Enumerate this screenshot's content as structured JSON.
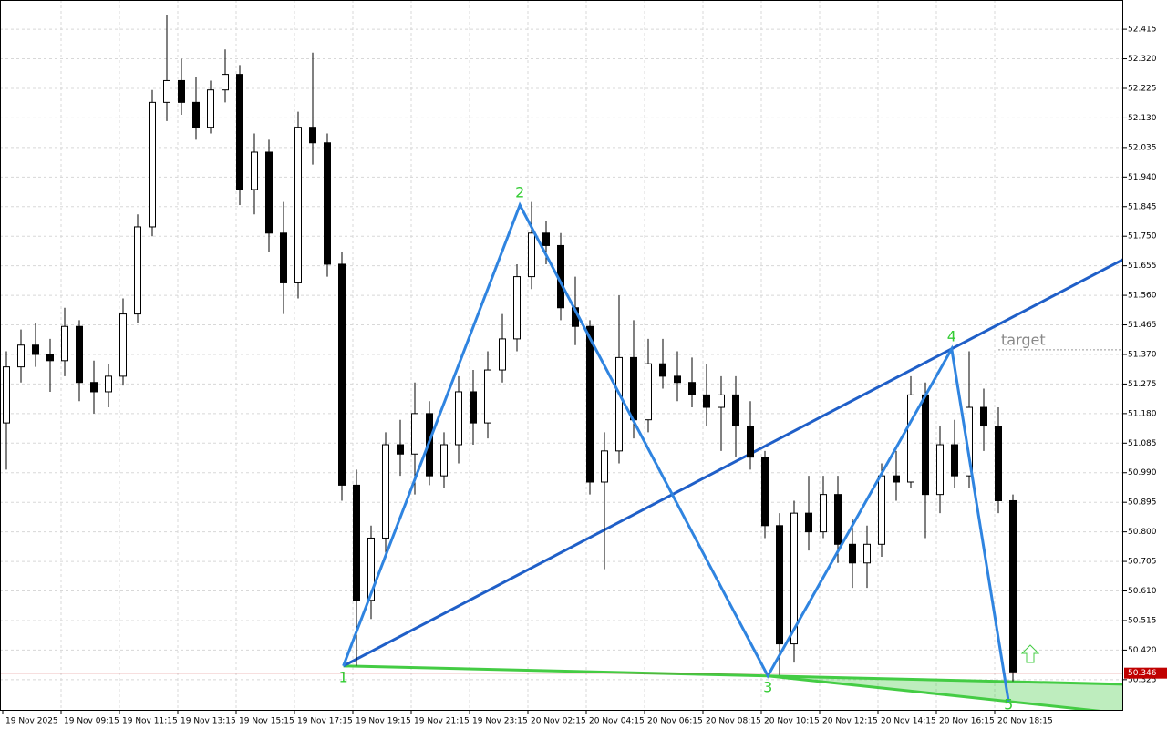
{
  "chart_data": {
    "type": "candlestick",
    "ylim": [
      50.225,
      52.509
    ],
    "yticks": [
      52.415,
      {
        "value": 52.32,
        "label": "52.320"
      },
      52.225,
      {
        "value": 52.13,
        "label": "52.130"
      },
      52.035,
      {
        "value": 51.94,
        "label": "51.940"
      },
      51.845,
      {
        "value": 51.75,
        "label": "51.750"
      },
      51.655,
      {
        "value": 51.56,
        "label": "51.560"
      },
      51.465,
      {
        "value": 51.37,
        "label": "51.370"
      },
      51.275,
      {
        "value": 51.18,
        "label": "51.180"
      },
      51.085,
      {
        "value": 50.99,
        "label": "50.990"
      },
      50.895,
      {
        "value": 50.8,
        "label": "50.800"
      },
      50.705,
      {
        "value": 50.61,
        "label": "50.610"
      },
      50.515,
      {
        "value": 50.42,
        "label": "50.420"
      },
      50.325
    ],
    "grid": true,
    "x_labels": [
      "19 Nov 2025",
      "19 Nov 09:15",
      "19 Nov 11:15",
      "19 Nov 13:15",
      "19 Nov 15:15",
      "19 Nov 17:15",
      "19 Nov 19:15",
      "19 Nov 21:15",
      "19 Nov 23:15",
      "20 Nov 02:15",
      "20 Nov 04:15",
      "20 Nov 06:15",
      "20 Nov 08:15",
      "20 Nov 10:15",
      "20 Nov 12:15",
      "20 Nov 14:15",
      "20 Nov 16:15",
      "20 Nov 18:15"
    ],
    "up_color": "#ffffff",
    "down_color": "#000000",
    "ohlc": [
      [
        51.15,
        51.38,
        51.0,
        51.33
      ],
      [
        51.33,
        51.45,
        51.28,
        51.4
      ],
      [
        51.4,
        51.47,
        51.33,
        51.37
      ],
      [
        51.37,
        51.42,
        51.25,
        51.35
      ],
      [
        51.35,
        51.52,
        51.3,
        51.46
      ],
      [
        51.46,
        51.48,
        51.22,
        51.28
      ],
      [
        51.28,
        51.35,
        51.18,
        51.25
      ],
      [
        51.25,
        51.34,
        51.2,
        51.3
      ],
      [
        51.3,
        51.55,
        51.27,
        51.5
      ],
      [
        51.5,
        51.82,
        51.47,
        51.78
      ],
      [
        51.78,
        52.22,
        51.75,
        52.18
      ],
      [
        52.18,
        52.46,
        52.12,
        52.25
      ],
      [
        52.25,
        52.32,
        52.14,
        52.18
      ],
      [
        52.18,
        52.26,
        52.06,
        52.1
      ],
      [
        52.1,
        52.25,
        52.08,
        52.22
      ],
      [
        52.22,
        52.35,
        52.18,
        52.27
      ],
      [
        52.27,
        52.3,
        51.85,
        51.9
      ],
      [
        51.9,
        52.08,
        51.82,
        52.02
      ],
      [
        52.02,
        52.06,
        51.7,
        51.76
      ],
      [
        51.76,
        51.86,
        51.5,
        51.6
      ],
      [
        51.6,
        52.15,
        51.55,
        52.1
      ],
      [
        52.1,
        52.34,
        51.98,
        52.05
      ],
      [
        52.05,
        52.08,
        51.62,
        51.66
      ],
      [
        51.66,
        51.7,
        50.9,
        50.95
      ],
      [
        50.95,
        51.0,
        50.37,
        50.58
      ],
      [
        50.58,
        50.82,
        50.52,
        50.78
      ],
      [
        50.78,
        51.12,
        50.72,
        51.08
      ],
      [
        51.08,
        51.16,
        50.98,
        51.05
      ],
      [
        51.05,
        51.28,
        50.92,
        51.18
      ],
      [
        51.18,
        51.22,
        50.95,
        50.98
      ],
      [
        50.98,
        51.12,
        50.94,
        51.08
      ],
      [
        51.08,
        51.3,
        51.02,
        51.25
      ],
      [
        51.25,
        51.32,
        51.08,
        51.15
      ],
      [
        51.15,
        51.38,
        51.1,
        51.32
      ],
      [
        51.32,
        51.5,
        51.28,
        51.42
      ],
      [
        51.42,
        51.66,
        51.38,
        51.62
      ],
      [
        51.62,
        51.86,
        51.58,
        51.76
      ],
      [
        51.76,
        51.8,
        51.66,
        51.72
      ],
      [
        51.72,
        51.76,
        51.48,
        51.52
      ],
      [
        51.52,
        51.62,
        51.4,
        51.46
      ],
      [
        51.46,
        51.48,
        50.92,
        50.96
      ],
      [
        50.96,
        51.12,
        50.68,
        51.06
      ],
      [
        51.06,
        51.56,
        51.02,
        51.36
      ],
      [
        51.36,
        51.48,
        51.1,
        51.16
      ],
      [
        51.16,
        51.42,
        51.12,
        51.34
      ],
      [
        51.34,
        51.42,
        51.26,
        51.3
      ],
      [
        51.3,
        51.38,
        51.22,
        51.28
      ],
      [
        51.28,
        51.36,
        51.2,
        51.24
      ],
      [
        51.24,
        51.34,
        51.14,
        51.2
      ],
      [
        51.2,
        51.3,
        51.06,
        51.24
      ],
      [
        51.24,
        51.3,
        51.04,
        51.14
      ],
      [
        51.14,
        51.22,
        51.0,
        51.04
      ],
      [
        51.04,
        51.06,
        50.78,
        50.82
      ],
      [
        50.82,
        50.86,
        50.34,
        50.44
      ],
      [
        50.44,
        50.9,
        50.38,
        50.86
      ],
      [
        50.86,
        50.98,
        50.74,
        50.8
      ],
      [
        50.8,
        50.98,
        50.78,
        50.92
      ],
      [
        50.92,
        50.98,
        50.7,
        50.76
      ],
      [
        50.76,
        50.84,
        50.62,
        50.7
      ],
      [
        50.7,
        50.82,
        50.62,
        50.76
      ],
      [
        50.76,
        51.02,
        50.72,
        50.98
      ],
      [
        50.98,
        51.06,
        50.9,
        50.96
      ],
      [
        50.96,
        51.3,
        50.94,
        51.24
      ],
      [
        51.24,
        51.28,
        50.78,
        50.92
      ],
      [
        50.92,
        51.14,
        50.86,
        51.08
      ],
      [
        51.08,
        51.16,
        50.94,
        50.98
      ],
      [
        50.98,
        51.38,
        50.94,
        51.2
      ],
      [
        51.2,
        51.26,
        51.06,
        51.14
      ],
      [
        51.14,
        51.2,
        50.86,
        50.9
      ],
      [
        50.9,
        50.92,
        50.32,
        50.35
      ]
    ],
    "current_price": 50.346,
    "current_price_color": "#c00000",
    "wave_points": [
      {
        "label": "1",
        "x": 23.1,
        "y": 50.369
      },
      {
        "label": "2",
        "x": 35.2,
        "y": 51.85
      },
      {
        "label": "3",
        "x": 52.2,
        "y": 50.337
      },
      {
        "label": "4",
        "x": 64.8,
        "y": 51.388
      },
      {
        "label": "5",
        "x": 68.7,
        "y": 50.255
      }
    ],
    "wave_color": "#2f84e0",
    "trend_color": "#1f5fc8",
    "support_color": "#44cc44",
    "label_color": "#33cc33",
    "target": {
      "label": "target",
      "value": 51.385
    }
  }
}
